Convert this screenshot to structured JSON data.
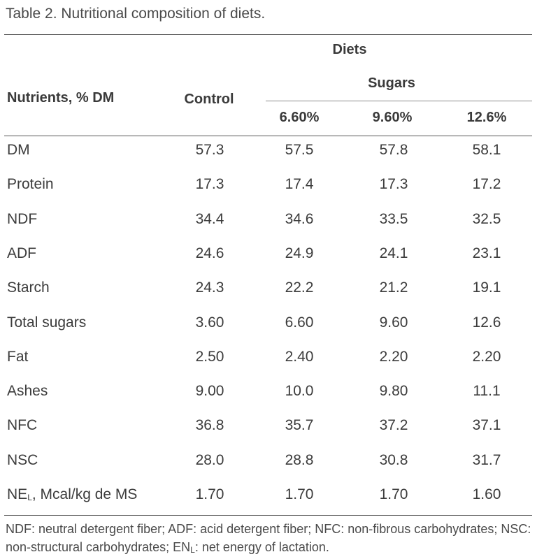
{
  "caption": "Table 2. Nutritional composition of diets.",
  "header": {
    "nutrients": "Nutrients, % DM",
    "diets": "Diets",
    "control": "Control",
    "sugars": "Sugars",
    "levels": [
      "6.60%",
      "9.60%",
      "12.6%"
    ]
  },
  "rows": [
    {
      "label": "DM",
      "values": [
        "57.3",
        "57.5",
        "57.8",
        "58.1"
      ]
    },
    {
      "label": "Protein",
      "values": [
        "17.3",
        "17.4",
        "17.3",
        "17.2"
      ]
    },
    {
      "label": "NDF",
      "values": [
        "34.4",
        "34.6",
        "33.5",
        "32.5"
      ]
    },
    {
      "label": "ADF",
      "values": [
        "24.6",
        "24.9",
        "24.1",
        "23.1"
      ]
    },
    {
      "label": "Starch",
      "values": [
        "24.3",
        "22.2",
        "21.2",
        "19.1"
      ]
    },
    {
      "label": "Total sugars",
      "values": [
        "3.60",
        "6.60",
        "9.60",
        "12.6"
      ]
    },
    {
      "label": "Fat",
      "values": [
        "2.50",
        "2.40",
        "2.20",
        "2.20"
      ]
    },
    {
      "label": "Ashes",
      "values": [
        "9.00",
        "10.0",
        "9.80",
        "11.1"
      ]
    },
    {
      "label": "NFC",
      "values": [
        "36.8",
        "35.7",
        "37.2",
        "37.1"
      ]
    },
    {
      "label": "NSC",
      "values": [
        "28.0",
        "28.8",
        "30.8",
        "31.7"
      ]
    },
    {
      "label_main": "NE",
      "label_sub": "L",
      "label_rest": ", Mcal/kg de MS",
      "values": [
        "1.70",
        "1.70",
        "1.70",
        "1.60"
      ]
    }
  ],
  "footnote": {
    "part1": "NDF: neutral detergent fiber; ADF: acid detergent fiber; NFC: non-fibrous carbohydrates; NSC: non-structural carbohydrates; EN",
    "sub": "L",
    "part2": ": net energy of lactation."
  }
}
